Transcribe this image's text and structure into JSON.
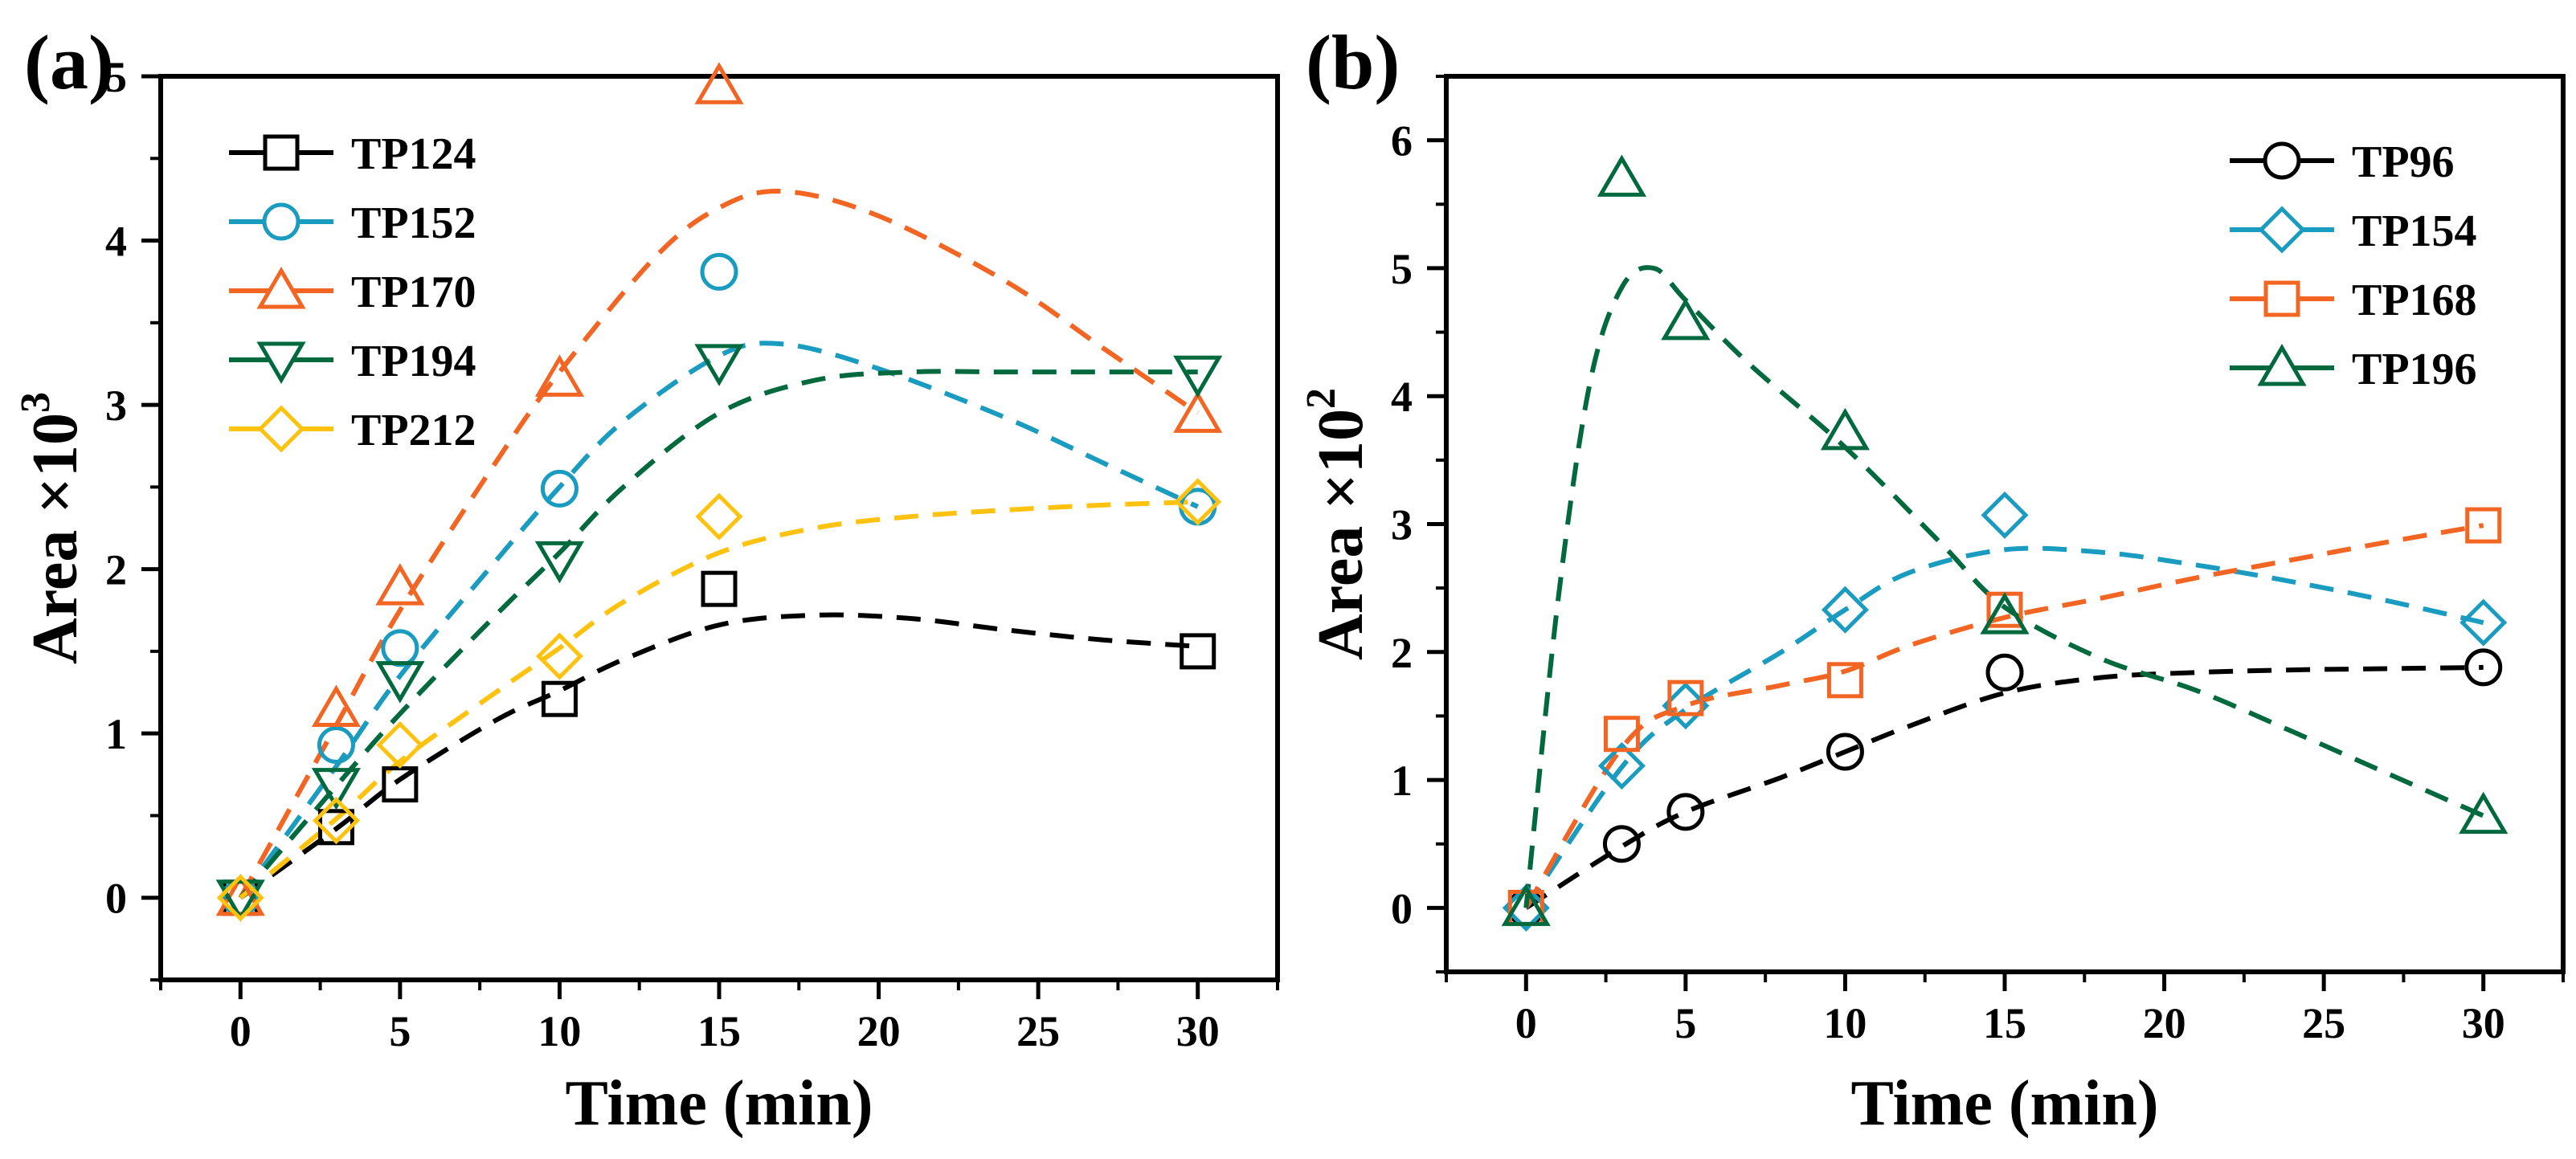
{
  "chart_data": [
    {
      "type": "scatter",
      "panel_label": "(a)",
      "xlabel": "Time (min)",
      "ylabel_base": "Area ×10",
      "ylabel_exponent": "3",
      "xlim": [
        -2.5,
        32.5
      ],
      "ylim": [
        -0.5,
        5.0
      ],
      "x_tick_labels": [
        "0",
        "5",
        "10",
        "15",
        "20",
        "25",
        "30"
      ],
      "x_ticks": [
        0,
        5,
        10,
        15,
        20,
        25,
        30
      ],
      "y_tick_labels": [
        "0",
        "1",
        "2",
        "3",
        "4",
        "5"
      ],
      "y_ticks": [
        0,
        1,
        2,
        3,
        4,
        5
      ],
      "legend_position": "top-left",
      "series": [
        {
          "name": "TP124",
          "marker": "square",
          "color": "#000000",
          "x": [
            0,
            3,
            5,
            10,
            15,
            30
          ],
          "y": [
            0.0,
            0.43,
            0.69,
            1.21,
            1.88,
            1.5
          ],
          "fit": [
            [
              0,
              0.0
            ],
            [
              3,
              0.42
            ],
            [
              5,
              0.72
            ],
            [
              8,
              1.08
            ],
            [
              10,
              1.26
            ],
            [
              12,
              1.45
            ],
            [
              15,
              1.66
            ],
            [
              18,
              1.72
            ],
            [
              21,
              1.7
            ],
            [
              24,
              1.63
            ],
            [
              27,
              1.57
            ],
            [
              30,
              1.53
            ]
          ]
        },
        {
          "name": "TP152",
          "marker": "circle",
          "color": "#1a9bc0",
          "x": [
            0,
            3,
            5,
            10,
            15,
            30
          ],
          "y": [
            0.0,
            0.93,
            1.52,
            2.49,
            3.81,
            2.38
          ],
          "fit": [
            [
              0,
              0.0
            ],
            [
              3,
              0.8
            ],
            [
              5,
              1.35
            ],
            [
              8,
              2.05
            ],
            [
              10,
              2.5
            ],
            [
              12,
              2.9
            ],
            [
              15,
              3.3
            ],
            [
              17,
              3.37
            ],
            [
              20,
              3.22
            ],
            [
              24,
              2.92
            ],
            [
              27,
              2.65
            ],
            [
              30,
              2.38
            ]
          ]
        },
        {
          "name": "TP170",
          "marker": "triangle-up",
          "color": "#f26522",
          "x": [
            0,
            3,
            5,
            10,
            15,
            30
          ],
          "y": [
            0.0,
            1.15,
            1.89,
            3.16,
            4.94,
            2.94
          ],
          "fit": [
            [
              0,
              0.0
            ],
            [
              3,
              1.05
            ],
            [
              5,
              1.75
            ],
            [
              8,
              2.65
            ],
            [
              10,
              3.2
            ],
            [
              13,
              3.9
            ],
            [
              15,
              4.2
            ],
            [
              17,
              4.3
            ],
            [
              20,
              4.15
            ],
            [
              24,
              3.75
            ],
            [
              27,
              3.35
            ],
            [
              30,
              2.95
            ]
          ]
        },
        {
          "name": "TP194",
          "marker": "triangle-down",
          "color": "#00693e",
          "x": [
            0,
            3,
            5,
            10,
            15,
            30
          ],
          "y": [
            0.0,
            0.68,
            1.33,
            2.06,
            3.26,
            3.19
          ],
          "fit": [
            [
              0,
              0.0
            ],
            [
              3,
              0.68
            ],
            [
              5,
              1.12
            ],
            [
              8,
              1.72
            ],
            [
              10,
              2.1
            ],
            [
              12,
              2.5
            ],
            [
              15,
              2.95
            ],
            [
              18,
              3.15
            ],
            [
              21,
              3.2
            ],
            [
              24,
              3.2
            ],
            [
              27,
              3.2
            ],
            [
              30,
              3.2
            ]
          ]
        },
        {
          "name": "TP212",
          "marker": "diamond",
          "color": "#ffc20e",
          "x": [
            0,
            3,
            5,
            10,
            15,
            30
          ],
          "y": [
            0.0,
            0.47,
            0.93,
            1.47,
            2.32,
            2.41
          ],
          "fit": [
            [
              0,
              0.0
            ],
            [
              3,
              0.48
            ],
            [
              5,
              0.83
            ],
            [
              8,
              1.25
            ],
            [
              10,
              1.52
            ],
            [
              12,
              1.8
            ],
            [
              15,
              2.1
            ],
            [
              18,
              2.25
            ],
            [
              21,
              2.32
            ],
            [
              24,
              2.36
            ],
            [
              27,
              2.39
            ],
            [
              30,
              2.41
            ]
          ]
        }
      ]
    },
    {
      "type": "scatter",
      "panel_label": "(b)",
      "xlabel": "Time (min)",
      "ylabel_base": "Area ×10",
      "ylabel_exponent": "2",
      "xlim": [
        -2.5,
        32.5
      ],
      "ylim": [
        -0.5,
        6.5
      ],
      "x_tick_labels": [
        "0",
        "5",
        "10",
        "15",
        "20",
        "25",
        "30"
      ],
      "x_ticks": [
        0,
        5,
        10,
        15,
        20,
        25,
        30
      ],
      "y_tick_labels": [
        "0",
        "1",
        "2",
        "3",
        "4",
        "5",
        "6"
      ],
      "y_ticks": [
        0,
        1,
        2,
        3,
        4,
        5,
        6
      ],
      "legend_position": "top-right",
      "series": [
        {
          "name": "TP96",
          "marker": "circle",
          "color": "#000000",
          "x": [
            0,
            3,
            5,
            10,
            15,
            30
          ],
          "y": [
            0.0,
            0.5,
            0.75,
            1.22,
            1.84,
            1.88
          ],
          "fit": [
            [
              0,
              0.0
            ],
            [
              3,
              0.48
            ],
            [
              5,
              0.75
            ],
            [
              8,
              1.02
            ],
            [
              10,
              1.22
            ],
            [
              12,
              1.42
            ],
            [
              15,
              1.68
            ],
            [
              18,
              1.8
            ],
            [
              21,
              1.84
            ],
            [
              24,
              1.86
            ],
            [
              27,
              1.87
            ],
            [
              30,
              1.88
            ]
          ]
        },
        {
          "name": "TP154",
          "marker": "diamond",
          "color": "#1a9bc0",
          "x": [
            0,
            3,
            5,
            10,
            15,
            30
          ],
          "y": [
            0.0,
            1.11,
            1.58,
            2.33,
            3.07,
            2.23
          ],
          "fit": [
            [
              0,
              0.0
            ],
            [
              3,
              1.1
            ],
            [
              5,
              1.55
            ],
            [
              8,
              2.0
            ],
            [
              10,
              2.33
            ],
            [
              12,
              2.62
            ],
            [
              15,
              2.8
            ],
            [
              18,
              2.78
            ],
            [
              21,
              2.68
            ],
            [
              24,
              2.55
            ],
            [
              27,
              2.4
            ],
            [
              30,
              2.23
            ]
          ]
        },
        {
          "name": "TP168",
          "marker": "square",
          "color": "#f26522",
          "x": [
            0,
            3,
            5,
            10,
            15,
            30
          ],
          "y": [
            0.0,
            1.36,
            1.64,
            1.78,
            2.33,
            2.99
          ],
          "fit": [
            [
              0,
              0.0
            ],
            [
              3,
              1.25
            ],
            [
              5,
              1.58
            ],
            [
              8,
              1.74
            ],
            [
              10,
              1.85
            ],
            [
              12,
              2.05
            ],
            [
              15,
              2.27
            ],
            [
              18,
              2.42
            ],
            [
              21,
              2.58
            ],
            [
              24,
              2.72
            ],
            [
              27,
              2.86
            ],
            [
              30,
              2.99
            ]
          ]
        },
        {
          "name": "TP196",
          "marker": "triangle-up",
          "color": "#00693e",
          "x": [
            0,
            3,
            5,
            10,
            15,
            30
          ],
          "y": [
            0.0,
            5.7,
            4.58,
            3.72,
            2.28,
            0.72
          ],
          "fit": [
            [
              0,
              0.0
            ],
            [
              1,
              2.4
            ],
            [
              2,
              4.1
            ],
            [
              3,
              4.85
            ],
            [
              4,
              5.0
            ],
            [
              5,
              4.75
            ],
            [
              7,
              4.25
            ],
            [
              10,
              3.6
            ],
            [
              13,
              2.85
            ],
            [
              15,
              2.35
            ],
            [
              18,
              1.95
            ],
            [
              21,
              1.7
            ],
            [
              24,
              1.38
            ],
            [
              27,
              1.05
            ],
            [
              30,
              0.72
            ]
          ]
        }
      ]
    }
  ]
}
